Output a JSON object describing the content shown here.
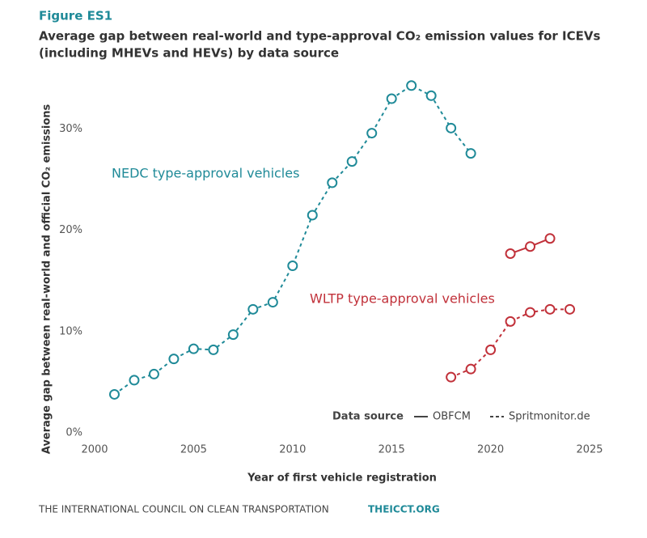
{
  "figure_label": "Figure ES1",
  "chart_data": {
    "type": "line",
    "title": [
      "Average gap between real-world and type-approval CO₂ emission values for ICEVs",
      "(including MHEVs and HEVs) by data source"
    ],
    "x_label": "Year of first vehicle registration",
    "y_label": "Average gap between real-world and official CO₂ emissions",
    "xlim": [
      2000,
      2025
    ],
    "xticks": [
      2000,
      2005,
      2010,
      2015,
      2020,
      2025
    ],
    "ylim": [
      0,
      35
    ],
    "yticks": [
      {
        "value": 0,
        "label": "0%"
      },
      {
        "value": 10,
        "label": "10%"
      },
      {
        "value": 20,
        "label": "20%"
      },
      {
        "value": 30,
        "label": "30%"
      }
    ],
    "grid": false,
    "annotations": [
      {
        "text": "NEDC type-approval vehicles",
        "color": "#1f8a98"
      },
      {
        "text": "WLTP type-approval vehicles",
        "color": "#c1313a"
      }
    ],
    "series": [
      {
        "color": "#1f8a98",
        "dashed": true,
        "x": [
          2001,
          2002,
          2003,
          2004,
          2005,
          2006,
          2007,
          2008,
          2009,
          2010,
          2011,
          2012,
          2013,
          2014,
          2015,
          2016,
          2017,
          2018,
          2019
        ],
        "values": [
          3.8,
          5.2,
          5.8,
          7.3,
          8.3,
          8.2,
          9.7,
          12.2,
          12.9,
          16.5,
          21.5,
          24.7,
          26.8,
          29.6,
          33.0,
          34.3,
          33.3,
          30.1,
          27.6
        ]
      },
      {
        "color": "#c1313a",
        "dashed": true,
        "x": [
          2018,
          2019,
          2020,
          2021,
          2022,
          2023,
          2024
        ],
        "values": [
          5.5,
          6.3,
          8.2,
          11.0,
          11.9,
          12.2,
          12.2
        ]
      },
      {
        "color": "#c1313a",
        "dashed": false,
        "x": [
          2021,
          2022,
          2023
        ],
        "values": [
          17.7,
          18.4,
          19.2
        ]
      }
    ],
    "legend": {
      "title": "Data source",
      "color": "#444444",
      "entries": [
        {
          "label": "OBFCM",
          "dashed": false
        },
        {
          "label": "Spritmonitor.de",
          "dashed": true
        }
      ]
    }
  },
  "footer": {
    "organization": "THE INTERNATIONAL COUNCIL ON CLEAN TRANSPORTATION",
    "url": "THEICCT.ORG"
  }
}
